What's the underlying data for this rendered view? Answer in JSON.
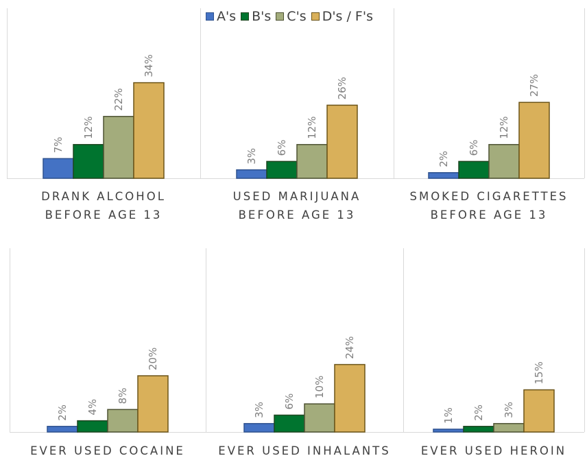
{
  "legend": [
    {
      "label": "A's",
      "color": "#4472c4",
      "border": "#2f528f"
    },
    {
      "label": "B's",
      "color": "#00742f",
      "border": "#1e4620"
    },
    {
      "label": "C's",
      "color": "#a3ac7c",
      "border": "#4d5232"
    },
    {
      "label": "D's / F's",
      "color": "#d9b05a",
      "border": "#6b5418"
    }
  ],
  "chart_data": [
    {
      "type": "bar",
      "categories": [
        "A's",
        "B's",
        "C's",
        "D's / F's"
      ],
      "values": [
        7,
        12,
        22,
        34
      ],
      "xlabel": [
        "DRANK ALCOHOL",
        "BEFORE AGE 13"
      ],
      "unit": "%"
    },
    {
      "type": "bar",
      "categories": [
        "A's",
        "B's",
        "C's",
        "D's / F's"
      ],
      "values": [
        3,
        6,
        12,
        26
      ],
      "xlabel": [
        "USED MARIJUANA",
        "BEFORE AGE 13"
      ],
      "unit": "%"
    },
    {
      "type": "bar",
      "categories": [
        "A's",
        "B's",
        "C's",
        "D's / F's"
      ],
      "values": [
        2,
        6,
        12,
        27
      ],
      "xlabel": [
        "SMOKED CIGARETTES",
        "BEFORE AGE 13"
      ],
      "unit": "%"
    },
    {
      "type": "bar",
      "categories": [
        "A's",
        "B's",
        "C's",
        "D's / F's"
      ],
      "values": [
        2,
        4,
        8,
        20
      ],
      "xlabel": [
        "EVER USED COCAINE"
      ],
      "unit": "%"
    },
    {
      "type": "bar",
      "categories": [
        "A's",
        "B's",
        "C's",
        "D's / F's"
      ],
      "values": [
        3,
        6,
        10,
        24
      ],
      "xlabel": [
        "EVER USED INHALANTS"
      ],
      "unit": "%"
    },
    {
      "type": "bar",
      "categories": [
        "A's",
        "B's",
        "C's",
        "D's / F's"
      ],
      "values": [
        1,
        2,
        3,
        15
      ],
      "xlabel": [
        "EVER USED HEROIN"
      ],
      "unit": "%"
    }
  ]
}
